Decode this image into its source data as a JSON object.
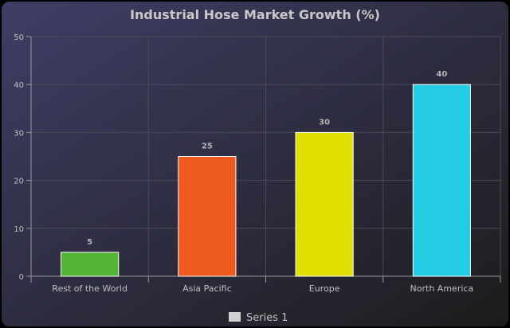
{
  "chart_data": {
    "type": "bar",
    "title": "Industrial Hose Market Growth (%)",
    "xlabel": "",
    "ylabel": "",
    "categories": [
      "Rest of the World",
      "Asia Pacific",
      "Europe",
      "North America"
    ],
    "series": [
      {
        "name": "Series 1",
        "values": [
          5,
          25,
          30,
          40
        ]
      }
    ],
    "bar_colors": [
      "#52b535",
      "#ee5a1e",
      "#e0e000",
      "#25cce6"
    ],
    "ylim": [
      0,
      50
    ],
    "yticks": [
      0,
      10,
      20,
      30,
      40,
      50
    ],
    "grid": true,
    "data_labels": true,
    "legend_position": "bottom-center"
  },
  "colors": {
    "background_top": "#3f3e66",
    "background_bottom": "#1c1c1c",
    "page_background": "#000000",
    "title": "#c8c8c8",
    "tick_label": "#c0c0c0",
    "data_label": "#b4b4b4",
    "grid": "#4a4a55",
    "axis": "#9a9a9a",
    "bar_border": "#ffffff",
    "legend_swatch": "#d0d0d0"
  }
}
